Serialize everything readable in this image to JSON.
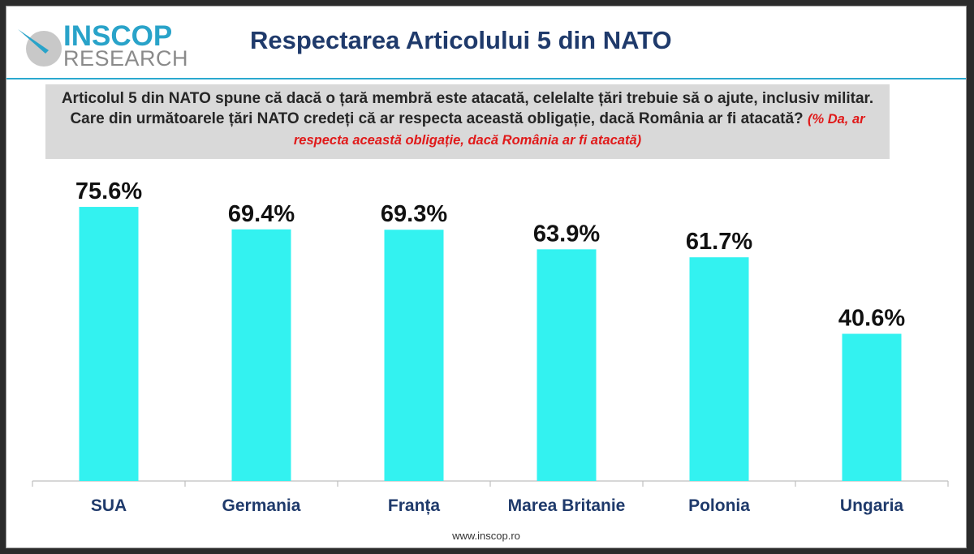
{
  "logo": {
    "line1": "INSCOP",
    "line2": "RESEARCH"
  },
  "header": {
    "title": "Respectarea Articolului 5 din NATO"
  },
  "question": {
    "text": "Articolul 5 din NATO spune că dacă o țară membră este atacată, celelalte țări trebuie să o ajute, inclusiv militar. Care din următoarele țări NATO credeți că ar respecta această obligație, dacă România ar fi atacată?",
    "note": "(% Da, ar respecta această obligație, dacă România ar fi atacată)"
  },
  "chart_data": {
    "type": "bar",
    "title": "Respectarea Articolului 5 din NATO",
    "categories": [
      "SUA",
      "Germania",
      "Franța",
      "Marea Britanie",
      "Polonia",
      "Ungaria"
    ],
    "values": [
      75.6,
      69.4,
      69.3,
      63.9,
      61.7,
      40.6
    ],
    "data_labels": [
      "75.6%",
      "69.4%",
      "69.3%",
      "63.9%",
      "61.7%",
      "40.6%"
    ],
    "xlabel": "",
    "ylabel": "",
    "ylim": [
      0,
      80
    ],
    "grid": false,
    "legend": "none",
    "colors": {
      "bar": "#33f2f0",
      "label": "#111111",
      "category": "#1f3a6b"
    }
  },
  "footer": {
    "url": "www.inscop.ro"
  }
}
